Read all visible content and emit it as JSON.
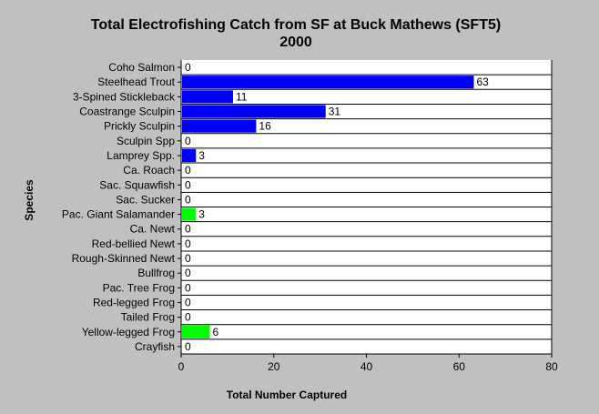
{
  "chart_data": {
    "type": "bar",
    "orientation": "horizontal",
    "title": "Total Electrofishing Catch from SF at Buck Mathews (SFT5)",
    "subtitle": "2000",
    "xlabel": "Total Number Captured",
    "ylabel": "Species",
    "xlim": [
      0,
      80
    ],
    "xticks": [
      0,
      20,
      40,
      60,
      80
    ],
    "grid": "horizontal",
    "legend": "none",
    "categories": [
      "Coho Salmon",
      "Steelhead Trout",
      "3-Spined Stickleback",
      "Coastrange Sculpin",
      "Prickly Sculpin",
      "Sculpin Spp",
      "Lamprey Spp.",
      "Ca. Roach",
      "Sac. Squawfish",
      "Sac. Sucker",
      "Pac. Giant Salamander",
      "Ca. Newt",
      "Red-bellied Newt",
      "Rough-Skinned Newt",
      "Bullfrog",
      "Pac. Tree Frog",
      "Red-legged Frog",
      "Tailed Frog",
      "Yellow-legged Frog",
      "Crayfish"
    ],
    "values": [
      0,
      63,
      11,
      31,
      16,
      0,
      3,
      0,
      0,
      0,
      3,
      0,
      0,
      0,
      0,
      0,
      0,
      0,
      6,
      0
    ],
    "bar_colors": [
      "#0000ff",
      "#0000ff",
      "#0000ff",
      "#0000ff",
      "#0000ff",
      "#0000ff",
      "#0000ff",
      "#0000ff",
      "#0000ff",
      "#0000ff",
      "#00ff00",
      "#00ff00",
      "#00ff00",
      "#00ff00",
      "#00ff00",
      "#00ff00",
      "#00ff00",
      "#00ff00",
      "#00ff00",
      "#0000ff"
    ],
    "colors": {
      "background": "#c0c0c0",
      "plot_area": "#ffffff",
      "fish": "#0000ff",
      "amphibian": "#00ff00"
    }
  }
}
